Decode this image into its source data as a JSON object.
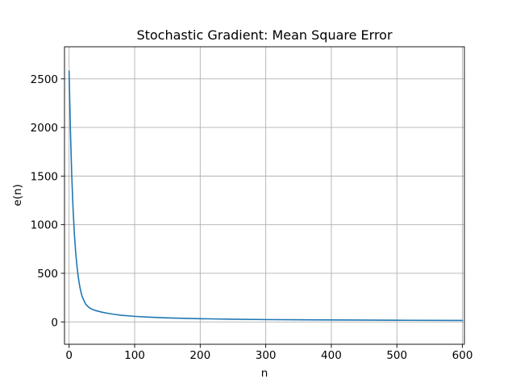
{
  "chart_data": {
    "type": "line",
    "title": "Stochastic Gradient: Mean Square Error",
    "xlabel": "n",
    "ylabel": "e(n)",
    "xlim": [
      -7,
      603
    ],
    "ylim": [
      -230,
      2830
    ],
    "x_ticks": [
      0,
      100,
      200,
      300,
      400,
      500,
      600
    ],
    "y_ticks": [
      0,
      500,
      1000,
      1500,
      2000,
      2500
    ],
    "grid": true,
    "legend": "none",
    "series": [
      {
        "color": "#1f77b4",
        "x": [
          0,
          2,
          4,
          6,
          8,
          10,
          12,
          14,
          16,
          18,
          20,
          25,
          30,
          35,
          40,
          50,
          60,
          70,
          80,
          100,
          120,
          150,
          200,
          250,
          300,
          400,
          500,
          600
        ],
        "values": [
          2580,
          1980,
          1520,
          1170,
          910,
          720,
          575,
          460,
          375,
          310,
          260,
          185,
          150,
          130,
          118,
          100,
          87,
          77,
          68,
          57,
          49,
          41,
          33,
          28,
          24,
          20,
          17,
          15
        ]
      }
    ]
  }
}
